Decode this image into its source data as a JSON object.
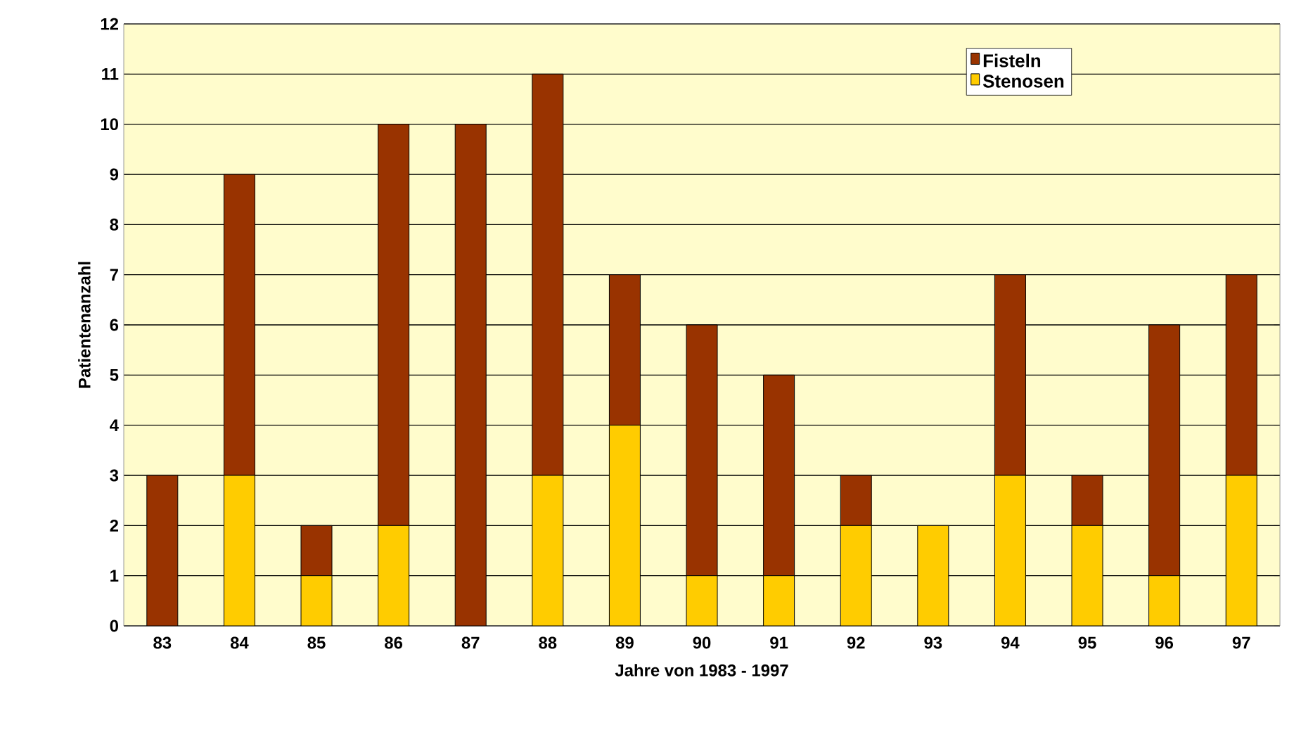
{
  "chart_data": {
    "type": "bar",
    "stacked": true,
    "xlabel": "Jahre von 1983 - 1997",
    "ylabel": "Patientenanzahl",
    "categories": [
      "83",
      "84",
      "85",
      "86",
      "87",
      "88",
      "89",
      "90",
      "91",
      "92",
      "93",
      "94",
      "95",
      "96",
      "97"
    ],
    "series": [
      {
        "name": "Stenosen",
        "color": "#ffcc00",
        "values": [
          0,
          3,
          1,
          2,
          0,
          3,
          4,
          1,
          1,
          2,
          2,
          3,
          2,
          1,
          3
        ]
      },
      {
        "name": "Fisteln",
        "color": "#993300",
        "values": [
          3,
          6,
          1,
          8,
          10,
          8,
          3,
          5,
          4,
          1,
          0,
          4,
          1,
          5,
          4
        ]
      }
    ],
    "ylim": [
      0,
      12
    ],
    "yticks": [
      0,
      1,
      2,
      3,
      4,
      5,
      6,
      7,
      8,
      9,
      10,
      11,
      12
    ],
    "grid": "y",
    "legend": "top right"
  }
}
